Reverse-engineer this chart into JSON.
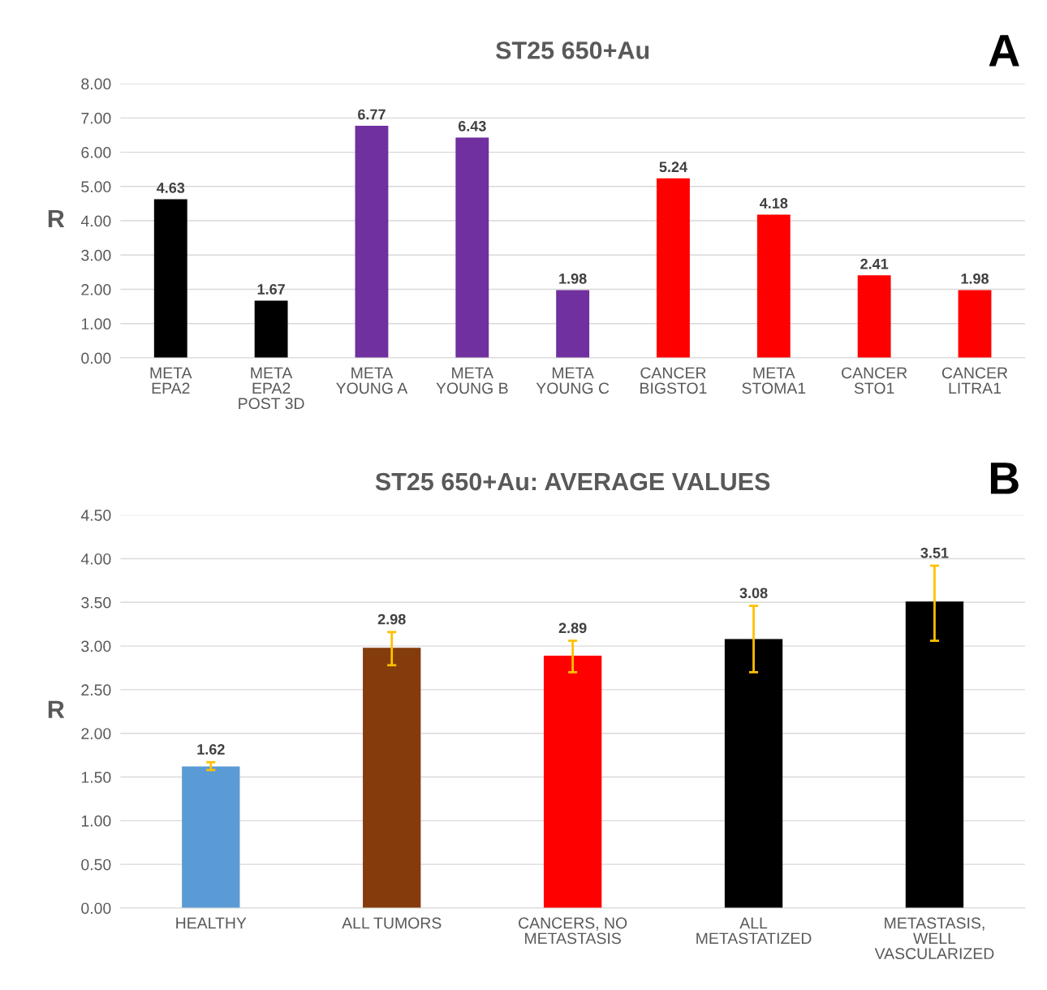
{
  "chart_data": [
    {
      "type": "bar",
      "title": "ST25 650+Au",
      "ylabel": "R",
      "annotations": [
        "A"
      ],
      "categories": [
        "META\nEPA2",
        "META\nEPA2\nPOST 3D",
        "META\nYOUNG A",
        "META\nYOUNG B",
        "META\nYOUNG C",
        "CANCER\nBIGSTO1",
        "META\nSTOMA1",
        "CANCER\nSTO1",
        "CANCER\nLITRA1"
      ],
      "values": [
        4.63,
        1.67,
        6.77,
        6.43,
        1.98,
        5.24,
        4.18,
        2.41,
        1.98
      ],
      "colors": [
        "#000000",
        "#000000",
        "#7030a0",
        "#7030a0",
        "#7030a0",
        "#ff0000",
        "#ff0000",
        "#ff0000",
        "#ff0000"
      ],
      "ylim": [
        0,
        8
      ],
      "yticks": [
        {
          "value": 0,
          "label": "0.00"
        },
        {
          "value": 1,
          "label": "1.00"
        },
        {
          "value": 2,
          "label": "2.00"
        },
        {
          "value": 3,
          "label": "3.00"
        },
        {
          "value": 4,
          "label": "4.00"
        },
        {
          "value": 5,
          "label": "5.00"
        },
        {
          "value": 6,
          "label": "6.00"
        },
        {
          "value": 7,
          "label": "7.00"
        },
        {
          "value": 8,
          "label": "8.00"
        }
      ],
      "grid": "y",
      "data_labels": true,
      "legend": false
    },
    {
      "type": "bar",
      "title": "ST25 650+Au: AVERAGE VALUES",
      "ylabel": "R",
      "annotations": [
        "B"
      ],
      "categories": [
        "HEALTHY",
        "ALL TUMORS",
        "CANCERS, NO\nMETASTASIS",
        "ALL\nMETASTATIZED",
        "METASTASIS,\nWELL\nVASCULARIZED"
      ],
      "values": [
        1.62,
        2.98,
        2.89,
        3.08,
        3.51
      ],
      "colors": [
        "#5b9bd5",
        "#843c0c",
        "#ff0000",
        "#000000",
        "#000000"
      ],
      "errors": [
        [
          1.58,
          1.67
        ],
        [
          2.78,
          3.16
        ],
        [
          2.7,
          3.06
        ],
        [
          2.7,
          3.46
        ],
        [
          3.06,
          3.92
        ]
      ],
      "ylim": [
        0,
        4.5
      ],
      "yticks": [
        {
          "value": 0,
          "label": "0.00"
        },
        {
          "value": 0.5,
          "label": "0.50"
        },
        {
          "value": 1,
          "label": "1.00"
        },
        {
          "value": 1.5,
          "label": "1.50"
        },
        {
          "value": 2,
          "label": "2.00"
        },
        {
          "value": 2.5,
          "label": "2.50"
        },
        {
          "value": 3,
          "label": "3.00"
        },
        {
          "value": 3.5,
          "label": "3.50"
        },
        {
          "value": 4,
          "label": "4.00"
        },
        {
          "value": 4.5,
          "label": "4.50"
        }
      ],
      "grid": "y",
      "data_labels": true,
      "legend": false
    }
  ]
}
